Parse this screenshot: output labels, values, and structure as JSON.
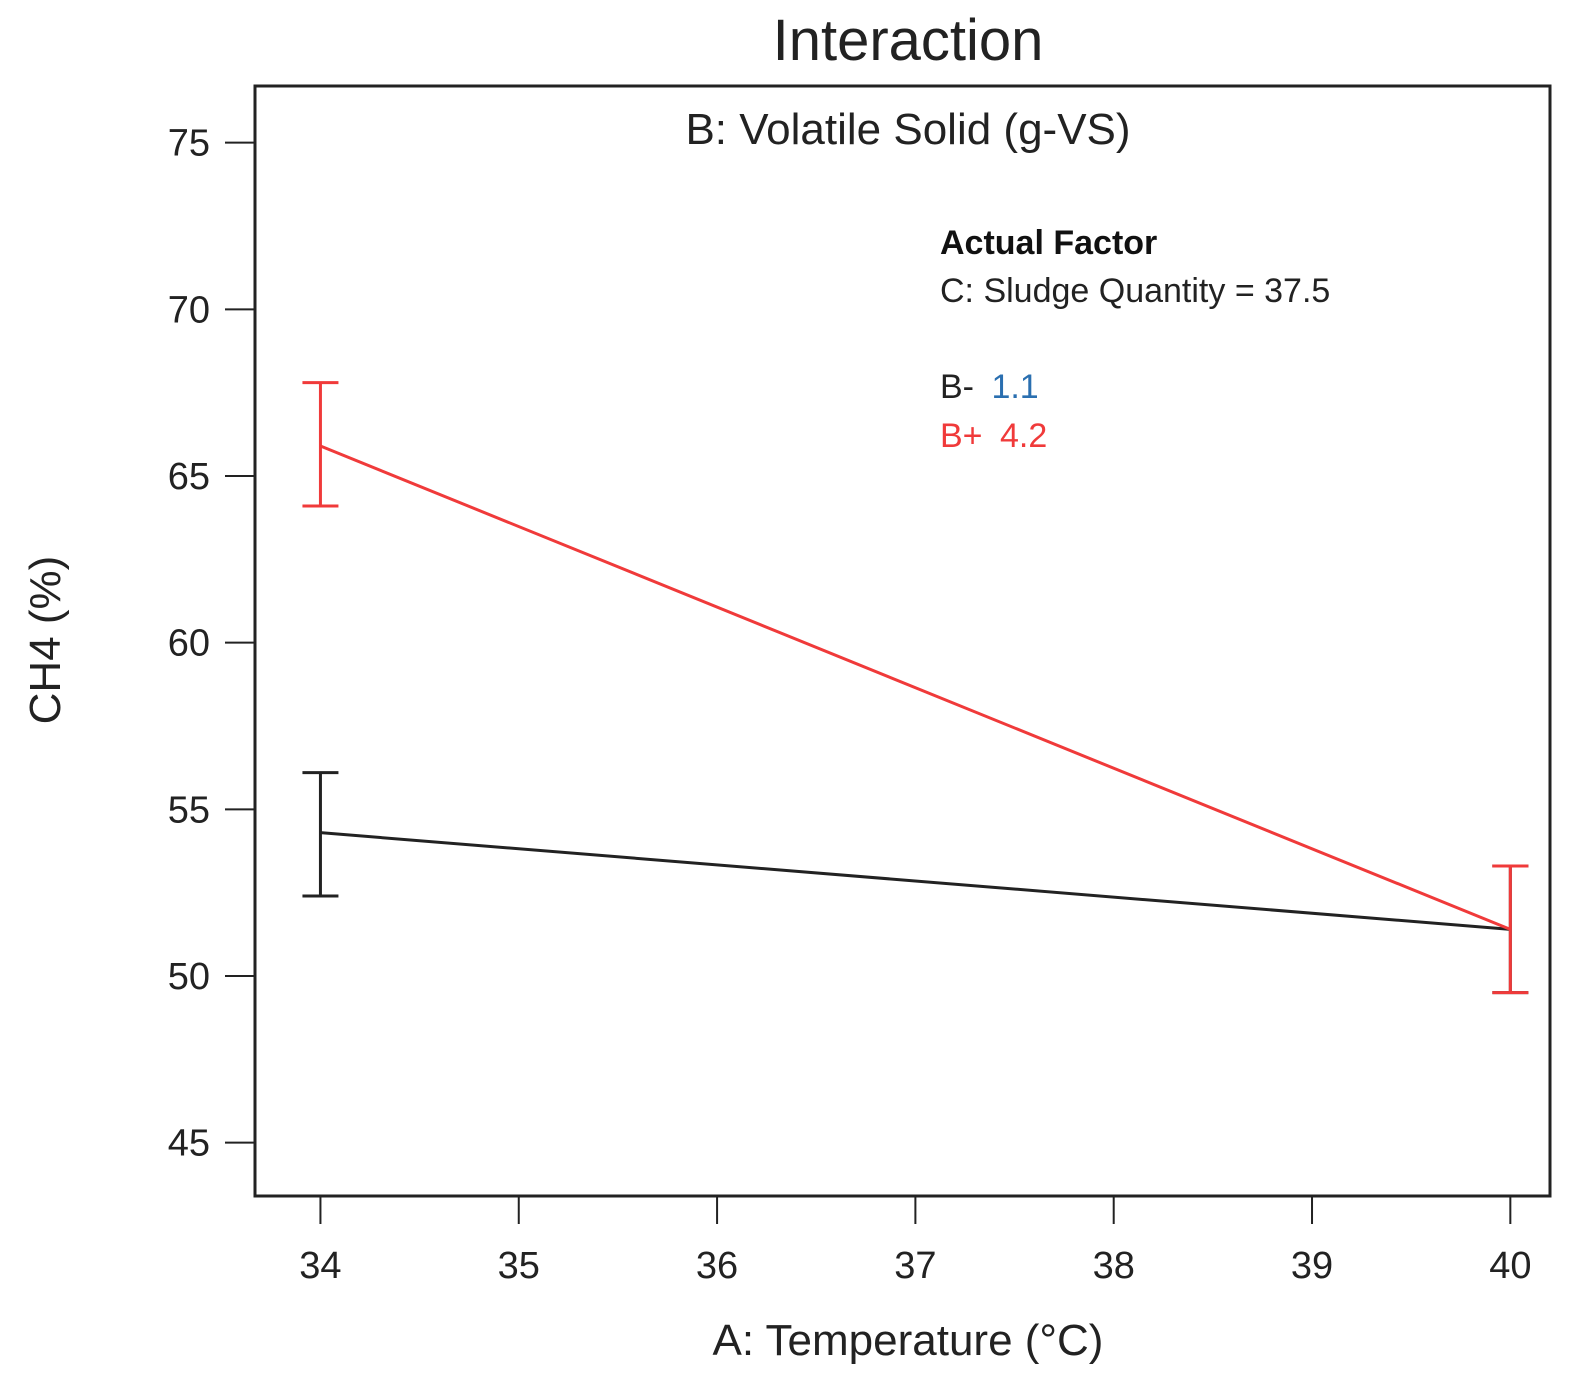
{
  "chart_data": {
    "type": "line",
    "title": "Interaction",
    "subtitle": "B: Volatile Solid (g-VS)",
    "xlabel": "A: Temperature (°C)",
    "ylabel": "CH4 (%)",
    "xlim": [
      33.67,
      40.2
    ],
    "ylim": [
      43.4,
      76.7
    ],
    "xticks": [
      34,
      35,
      36,
      37,
      38,
      39,
      40
    ],
    "yticks": [
      45,
      50,
      55,
      60,
      65,
      70,
      75
    ],
    "actual_factor": {
      "heading": "Actual Factor",
      "text": "C: Sludge Quantity = 37.5"
    },
    "series": [
      {
        "name": "B-",
        "legend_prefix": "B-",
        "legend_value": "1.1",
        "color": "#222222",
        "x": [
          34,
          40
        ],
        "y": [
          54.3,
          51.4
        ],
        "error_low": [
          52.4,
          49.5
        ],
        "error_high": [
          56.1,
          53.3
        ]
      },
      {
        "name": "B+",
        "legend_prefix": "B+",
        "legend_value": "4.2",
        "color": "#f03a3a",
        "x": [
          34,
          40
        ],
        "y": [
          65.9,
          51.4
        ],
        "error_low": [
          64.1,
          49.5
        ],
        "error_high": [
          67.8,
          53.3
        ]
      }
    ]
  }
}
